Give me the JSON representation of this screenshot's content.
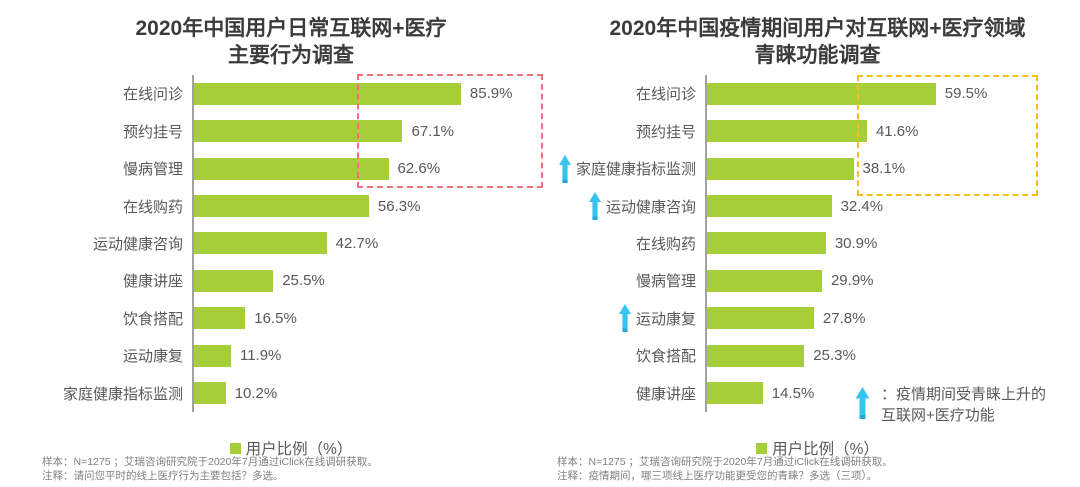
{
  "colors": {
    "bar_green": "#a6ce39",
    "arrow_cyan": "#35c3f0",
    "arrow_cyan_dark": "#26a9d6",
    "axis_line": "#a1a1a1",
    "left_highlight_box": "#f1707f",
    "right_highlight_box": "#f7bd1b",
    "title_text": "#3b3b3b",
    "label_text": "#595959",
    "footer_text": "#808080"
  },
  "arrow_note": {
    "line1": "：疫情期间受青睐上升的",
    "line2": "互联网+医疗功能"
  },
  "chart_data": [
    {
      "type": "bar",
      "orientation": "horizontal",
      "title": "2020年中国用户日常互联网+医疗主要行为调查",
      "title_lines": [
        "2020年中国用户日常互联网+医疗",
        "主要行为调查"
      ],
      "categories": [
        "在线问诊",
        "预约挂号",
        "慢病管理",
        "在线购药",
        "运动健康咨询",
        "健康讲座",
        "饮食搭配",
        "运动康复",
        "家庭健康指标监测"
      ],
      "values": [
        85.9,
        67.1,
        62.6,
        56.3,
        42.7,
        25.5,
        16.5,
        11.9,
        10.2
      ],
      "value_labels": [
        "85.9%",
        "67.1%",
        "62.6%",
        "56.3%",
        "42.7%",
        "25.5%",
        "16.5%",
        "11.9%",
        "10.2%"
      ],
      "unit": "%",
      "xlim": [
        0,
        112
      ],
      "grid": false,
      "legend": "用户比例（%）",
      "legend_position": "bottom-center",
      "arrow_rows": [],
      "highlight": {
        "style": "dashed-box",
        "color": "#f1707f",
        "rows_covered": [
          "在线问诊",
          "预约挂号",
          "慢病管理"
        ]
      },
      "footer_lines": [
        "样本：N=1275 ；艾瑞咨询研究院于2020年7月通过iClick在线调研获取。",
        "注释：请问您平时的线上医疗行为主要包括？多选。"
      ]
    },
    {
      "type": "bar",
      "orientation": "horizontal",
      "title": "2020年中国疫情期间用户对互联网+医疗领域青睐功能调查",
      "title_lines": [
        "2020年中国疫情期间用户对互联网+医疗领域",
        "青睐功能调查"
      ],
      "categories": [
        "在线问诊",
        "预约挂号",
        "家庭健康指标监测",
        "运动健康咨询",
        "在线购药",
        "慢病管理",
        "运动康复",
        "饮食搭配",
        "健康讲座"
      ],
      "values": [
        59.5,
        41.6,
        38.1,
        32.4,
        30.9,
        29.9,
        27.8,
        25.3,
        14.5
      ],
      "value_labels": [
        "59.5%",
        "41.6%",
        "38.1%",
        "32.4%",
        "30.9%",
        "29.9%",
        "27.8%",
        "25.3%",
        "14.5%"
      ],
      "unit": "%",
      "xlim": [
        0,
        97
      ],
      "grid": false,
      "legend": "用户比例（%）",
      "legend_position": "bottom-center",
      "arrow_rows": [
        2,
        3,
        6
      ],
      "highlight": {
        "style": "dashed-box",
        "color": "#f7bd1b",
        "rows_covered": [
          "在线问诊",
          "预约挂号",
          "家庭健康指标监测"
        ]
      },
      "footer_lines": [
        "样本：N=1275 ；艾瑞咨询研究院于2020年7月通过iClick在线调研获取。",
        "注释：疫情期间，哪三项线上医疗功能更受您的青睐？多选（三项）。"
      ]
    }
  ]
}
